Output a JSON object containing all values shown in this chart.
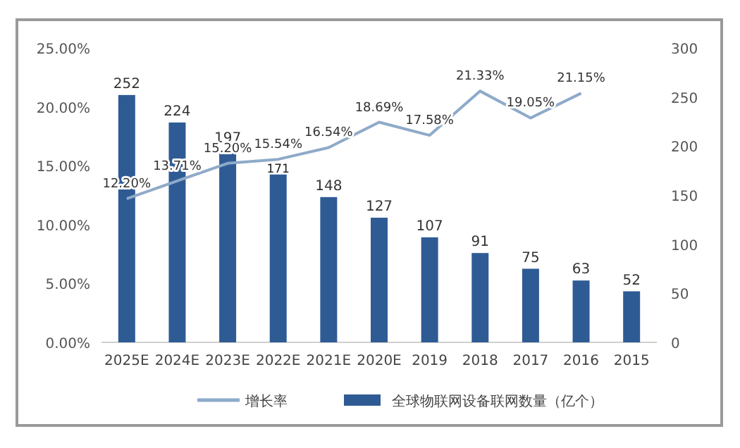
{
  "chart_data": {
    "type": "bar",
    "categories": [
      "2025E",
      "2024E",
      "2023E",
      "2022E",
      "2021E",
      "2020E",
      "2019",
      "2018",
      "2017",
      "2016",
      "2015"
    ],
    "series": [
      {
        "name": "全球物联网设备联网数量（亿个）",
        "axis": "y2",
        "color": "#2f5b95",
        "values": [
          252,
          224,
          197,
          171,
          148,
          127,
          107,
          91,
          75,
          63,
          52
        ],
        "value_labels": [
          "252",
          "224",
          "197",
          "171",
          "148",
          "127",
          "107",
          "91",
          "75",
          "63",
          "52"
        ]
      },
      {
        "name": "增长率",
        "type": "line",
        "axis": "y",
        "color": "#8eaac9",
        "values": [
          12.2,
          13.71,
          15.2,
          15.54,
          16.54,
          18.69,
          17.58,
          21.33,
          19.05,
          21.15,
          null
        ],
        "value_labels": [
          "12.20%",
          "13.71%",
          "15.20%",
          "15.54%",
          "16.54%",
          "18.69%",
          "17.58%",
          "21.33%",
          "19.05%",
          "21.15%",
          null
        ]
      }
    ],
    "ylim": [
      0,
      25
    ],
    "yticks": [
      {
        "value": 0,
        "label": "0.00%"
      },
      {
        "value": 5,
        "label": "5.00%"
      },
      {
        "value": 10,
        "label": "10.00%"
      },
      {
        "value": 15,
        "label": "15.00%"
      },
      {
        "value": 20,
        "label": "20.00%"
      },
      {
        "value": 25,
        "label": "25.00%"
      }
    ],
    "y2lim": [
      0,
      300
    ],
    "y2ticks": [
      0,
      50,
      100,
      150,
      200,
      250,
      300
    ],
    "legend": "bottom",
    "marker": "none",
    "grid": false
  }
}
